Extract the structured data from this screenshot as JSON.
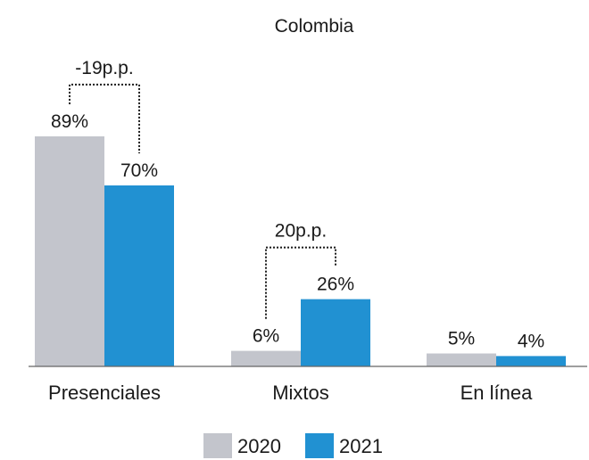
{
  "chart_data": {
    "type": "bar",
    "title": "Colombia",
    "categories": [
      "Presenciales",
      "Mixtos",
      "En línea"
    ],
    "series": [
      {
        "name": "2020",
        "values": [
          89,
          6,
          5
        ],
        "color": "#c3c5cc"
      },
      {
        "name": "2021",
        "values": [
          70,
          26,
          4
        ],
        "color": "#2191d2"
      }
    ],
    "value_suffix": "%",
    "ylim": [
      0,
      100
    ],
    "grid": false,
    "legend": "bottom-center",
    "annotations": [
      {
        "category": "Presenciales",
        "text": "-19p.p."
      },
      {
        "category": "Mixtos",
        "text": "20p.p."
      }
    ]
  }
}
